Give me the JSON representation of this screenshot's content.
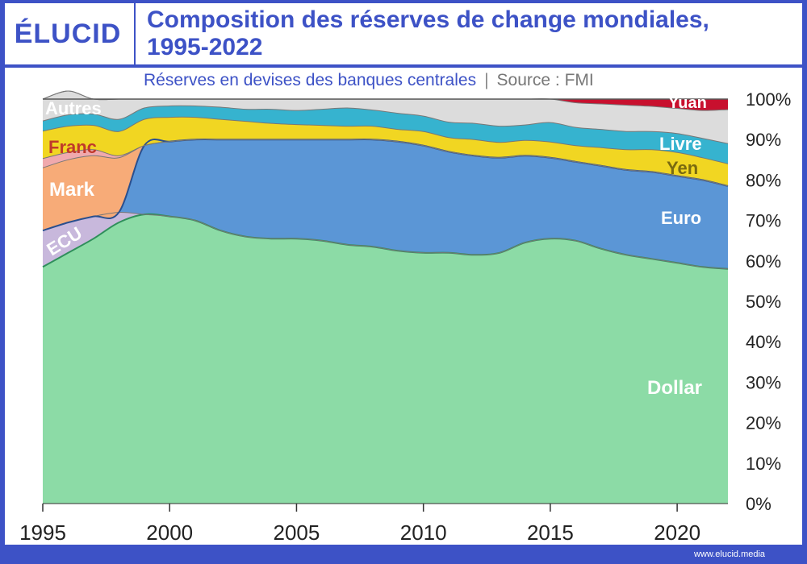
{
  "brand": {
    "logo": "ÉLUCID",
    "footer_url": "www.elucid.media"
  },
  "header": {
    "title_line1": "Composition des réserves de change mondiales,",
    "title_line2": "1995-2022"
  },
  "subtitle": {
    "main": "Réserves en devises des banques centrales",
    "separator": "|",
    "source": "Source : FMI"
  },
  "chart_data": {
    "type": "area",
    "stacked": true,
    "x": [
      1995,
      1996,
      1997,
      1998,
      1999,
      2000,
      2001,
      2002,
      2003,
      2004,
      2005,
      2006,
      2007,
      2008,
      2009,
      2010,
      2011,
      2012,
      2013,
      2014,
      2015,
      2016,
      2017,
      2018,
      2019,
      2020,
      2021,
      2022
    ],
    "ylim": [
      0,
      100
    ],
    "yticks": [
      "0%",
      "10%",
      "20%",
      "30%",
      "40%",
      "50%",
      "60%",
      "70%",
      "80%",
      "90%",
      "100%"
    ],
    "xticks": [
      "1995",
      "2000",
      "2005",
      "2010",
      "2015",
      "2020"
    ],
    "series": [
      {
        "name": "Dollar",
        "color": "#8cdba6",
        "values": [
          58.5,
          62,
          65.5,
          69.5,
          71.5,
          71,
          70,
          67.5,
          66,
          65.5,
          65.5,
          65,
          64,
          63.5,
          62.5,
          62,
          62,
          61.5,
          62,
          64.5,
          65.5,
          65,
          63,
          61.5,
          60.5,
          59.5,
          58.5,
          58
        ]
      },
      {
        "name": "ECU",
        "color": "#c8b8dc",
        "values": [
          9,
          7.5,
          5.5,
          2.5,
          0,
          0,
          0,
          0,
          0,
          0,
          0,
          0,
          0,
          0,
          0,
          0,
          0,
          0,
          0,
          0,
          0,
          0,
          0,
          0,
          0,
          0,
          0,
          0
        ]
      },
      {
        "name": "Euro",
        "color": "#5b96d6",
        "values": [
          0,
          0,
          0,
          0,
          17,
          18.5,
          20,
          22.5,
          24,
          24.5,
          24.5,
          25,
          26,
          26.5,
          27,
          26.5,
          25,
          24.5,
          23.5,
          21.5,
          20,
          19.5,
          20.5,
          21,
          21.5,
          21.5,
          21.5,
          20.5
        ]
      },
      {
        "name": "Mark",
        "color": "#f7ab78",
        "values": [
          15.5,
          15.5,
          15,
          13.5,
          0,
          0,
          0,
          0,
          0,
          0,
          0,
          0,
          0,
          0,
          0,
          0,
          0,
          0,
          0,
          0,
          0,
          0,
          0,
          0,
          0,
          0,
          0,
          0
        ]
      },
      {
        "name": "Franc",
        "color": "#f0a9ad",
        "values": [
          2.3,
          1.8,
          1.5,
          0.5,
          0,
          0,
          0,
          0,
          0,
          0,
          0,
          0,
          0,
          0,
          0,
          0,
          0,
          0,
          0,
          0,
          0,
          0,
          0,
          0,
          0,
          0,
          0,
          0
        ]
      },
      {
        "name": "Yen",
        "color": "#f1d622",
        "values": [
          6.8,
          6.5,
          6,
          6,
          6.5,
          6,
          5.5,
          5,
          4.5,
          4,
          3.7,
          3.5,
          3.3,
          3.3,
          3,
          3.5,
          3.5,
          4,
          3.8,
          3.8,
          3.9,
          4,
          4.5,
          5,
          5.5,
          5.8,
          5.5,
          5.5
        ]
      },
      {
        "name": "Livre",
        "color": "#36b3cf",
        "values": [
          2.5,
          2.8,
          2.8,
          3,
          2.8,
          2.8,
          2.8,
          3,
          3,
          3.5,
          3.5,
          4,
          4.5,
          4,
          4,
          3.8,
          3.8,
          4,
          4,
          3.8,
          4.8,
          4.5,
          4.5,
          4.5,
          4.5,
          4.7,
          4.8,
          5
        ]
      },
      {
        "name": "Autres",
        "color": "#dcdcdc",
        "values": [
          5.4,
          5.9,
          3.7,
          5,
          2.2,
          1.7,
          1.7,
          2,
          2.5,
          2.5,
          2.8,
          2.5,
          2.2,
          2.7,
          3.5,
          4.2,
          5.7,
          6,
          6.7,
          6.4,
          5.8,
          6.1,
          6.3,
          6.5,
          6.2,
          6.2,
          6.9,
          8.4
        ]
      },
      {
        "name": "Yuan",
        "color": "#c8102e",
        "values": [
          0,
          0,
          0,
          0,
          0,
          0,
          0,
          0,
          0,
          0,
          0,
          0,
          0,
          0,
          0,
          0,
          0,
          0,
          0,
          0,
          0,
          0.9,
          1.2,
          1.5,
          1.8,
          2.3,
          2.8,
          2.6
        ]
      }
    ],
    "labels": [
      {
        "text": "Autres",
        "color": "#ffffff"
      },
      {
        "text": "Franc",
        "color": "#c0392b"
      },
      {
        "text": "Mark",
        "color": "#ffffff"
      },
      {
        "text": "ECU",
        "color": "#ffffff"
      },
      {
        "text": "Yuan",
        "color": "#ffffff"
      },
      {
        "text": "Livre",
        "color": "#ffffff"
      },
      {
        "text": "Yen",
        "color": "#7a6a10"
      },
      {
        "text": "Euro",
        "color": "#ffffff"
      },
      {
        "text": "Dollar",
        "color": "#ffffff"
      }
    ]
  }
}
